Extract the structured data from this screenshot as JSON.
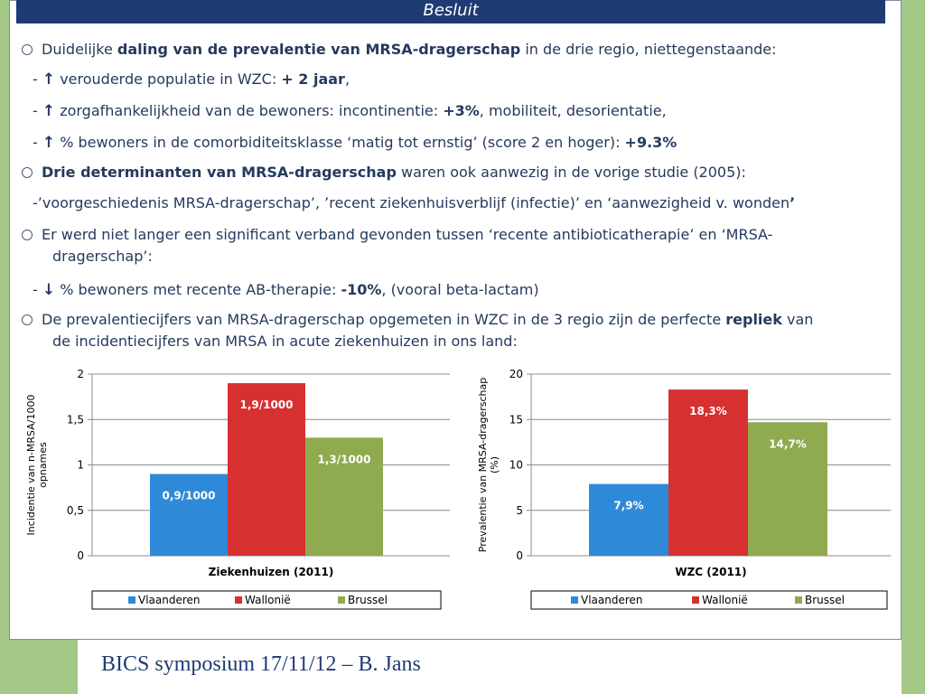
{
  "slide": {
    "title": "Besluit",
    "footer": "BICS symposium 17/11/12 – B. Jans"
  },
  "text": {
    "b1": {
      "pre": "Duidelijke ",
      "bold": "daling van de prevalentie van MRSA-dragerschap",
      "post": " in de drie regio, niettegenstaande:"
    },
    "s1": {
      "arrow": "↑",
      "pre": " verouderde populatie in WZC: ",
      "bold": "+ 2 jaar",
      "post": ","
    },
    "s2": {
      "arrow": "↑",
      "pre": " zorgafhankelijkheid van de bewoners: incontinentie: ",
      "bold": "+3%",
      "post": ", mobiliteit, desorientatie,"
    },
    "s3": {
      "arrow": "↑",
      "pre": " % bewoners in de comorbiditeitsklasse ‘matig tot ernstig’ (score 2 en hoger): ",
      "bold": "+9.3%"
    },
    "b2": {
      "bold": "Drie determinanten van MRSA-dragerschap",
      "post": " waren ook aanwezig in de vorige studie (2005):"
    },
    "b2c": {
      "pre": "-’voorgeschiedenis MRSA-dragerschap’, ’recent ziekenhuisverblijf (infectie)’ en ‘aanwezigheid v. wonden",
      "bold": "’"
    },
    "b3a": "Er werd niet langer een significant verband gevonden tussen ‘recente antibioticatherapie’ en ‘MRSA-",
    "b3b": "dragerschap’:",
    "s4": {
      "arrow": "↓",
      "pre": " % bewoners met recente AB-therapie: ",
      "bold": "-10%",
      "post": ",  (vooral beta-lactam)"
    },
    "b4a": {
      "pre": "De prevalentiecijfers van MRSA-dragerschap opgemeten in WZC in de 3 regio zijn de perfecte ",
      "bold": "repliek",
      "post": " van"
    },
    "b4b": "de incidentiecijfers van MRSA in acute ziekenhuizen in ons land:"
  },
  "chart_data": [
    {
      "type": "bar",
      "title": "",
      "xlabel": "Ziekenhuizen (2011)",
      "ylabel": "Incidentie van n-MRSA/1000 opnames",
      "ylim": [
        0,
        2
      ],
      "yticks": [
        "0",
        "0,5",
        "1",
        "1,5",
        "2"
      ],
      "yticks_values": [
        0,
        0.5,
        1,
        1.5,
        2
      ],
      "grid": true,
      "legend": "bottom",
      "series": [
        {
          "name": "Vlaanderen",
          "values": [
            0.9
          ],
          "label": "0,9/1000",
          "color": "#2e8ad8"
        },
        {
          "name": "Wallonië",
          "values": [
            1.9
          ],
          "label": "1,9/1000",
          "color": "#d63031"
        },
        {
          "name": "Brussel",
          "values": [
            1.3
          ],
          "label": "1,3/1000",
          "color": "#8faa4f"
        }
      ]
    },
    {
      "type": "bar",
      "title": "",
      "xlabel": "WZC (2011)",
      "ylabel": "Prevalentie van MRSA-dragerschap (%)",
      "ylim": [
        0,
        20
      ],
      "yticks": [
        "0",
        "5",
        "10",
        "15",
        "20"
      ],
      "yticks_values": [
        0,
        5,
        10,
        15,
        20
      ],
      "grid": true,
      "legend": "bottom",
      "series": [
        {
          "name": "Vlaanderen",
          "values": [
            7.9
          ],
          "label": "7,9%",
          "color": "#2e8ad8"
        },
        {
          "name": "Wallonië",
          "values": [
            18.3
          ],
          "label": "18,3%",
          "color": "#d63031"
        },
        {
          "name": "Brussel",
          "values": [
            14.7
          ],
          "label": "14,7%",
          "color": "#8faa4f"
        }
      ]
    }
  ]
}
